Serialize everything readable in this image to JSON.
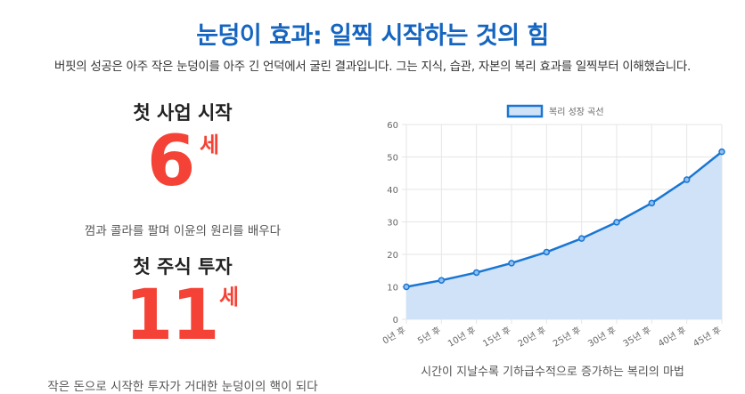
{
  "header": {
    "title": "눈덩이 효과: 일찍 시작하는 것의 힘",
    "subtitle": "버핏의 성공은 아주 작은 눈덩이를 아주 긴 언덕에서 굴린 결과입니다. 그는 지식, 습관, 자본의 복리 효과를 일찍부터 이해했습니다."
  },
  "milestones": [
    {
      "heading": "첫 사업 시작",
      "number": "6",
      "unit": "세",
      "desc": "껌과 콜라를 팔며 이윤의 원리를 배우다"
    },
    {
      "heading": "첫 주식 투자",
      "number": "11",
      "unit": "세",
      "desc": "작은 돈으로 시작한 투자가 거대한 눈덩이의 핵이 되다"
    }
  ],
  "chart_caption": "시간이 지날수록 기하급수적으로 증가하는 복리의 마법",
  "chart_data": {
    "type": "area",
    "title": "",
    "xlabel": "",
    "ylabel": "",
    "categories": [
      "0년 후",
      "5년 후",
      "10년 후",
      "15년 후",
      "20년 후",
      "25년 후",
      "30년 후",
      "35년 후",
      "40년 후",
      "45년 후"
    ],
    "series": [
      {
        "name": "복리 성장 곡선",
        "values": [
          10,
          12,
          14.4,
          17.3,
          20.7,
          24.9,
          29.9,
          35.8,
          43.0,
          51.6
        ]
      }
    ],
    "ylim": [
      0,
      60
    ],
    "yticks": [
      0,
      10,
      20,
      30,
      40,
      50,
      60
    ],
    "grid": true,
    "legend": "top-center",
    "colors": {
      "line": "#1976d2",
      "fill": "#cfe2f8",
      "grid": "#e6e6e6"
    }
  }
}
